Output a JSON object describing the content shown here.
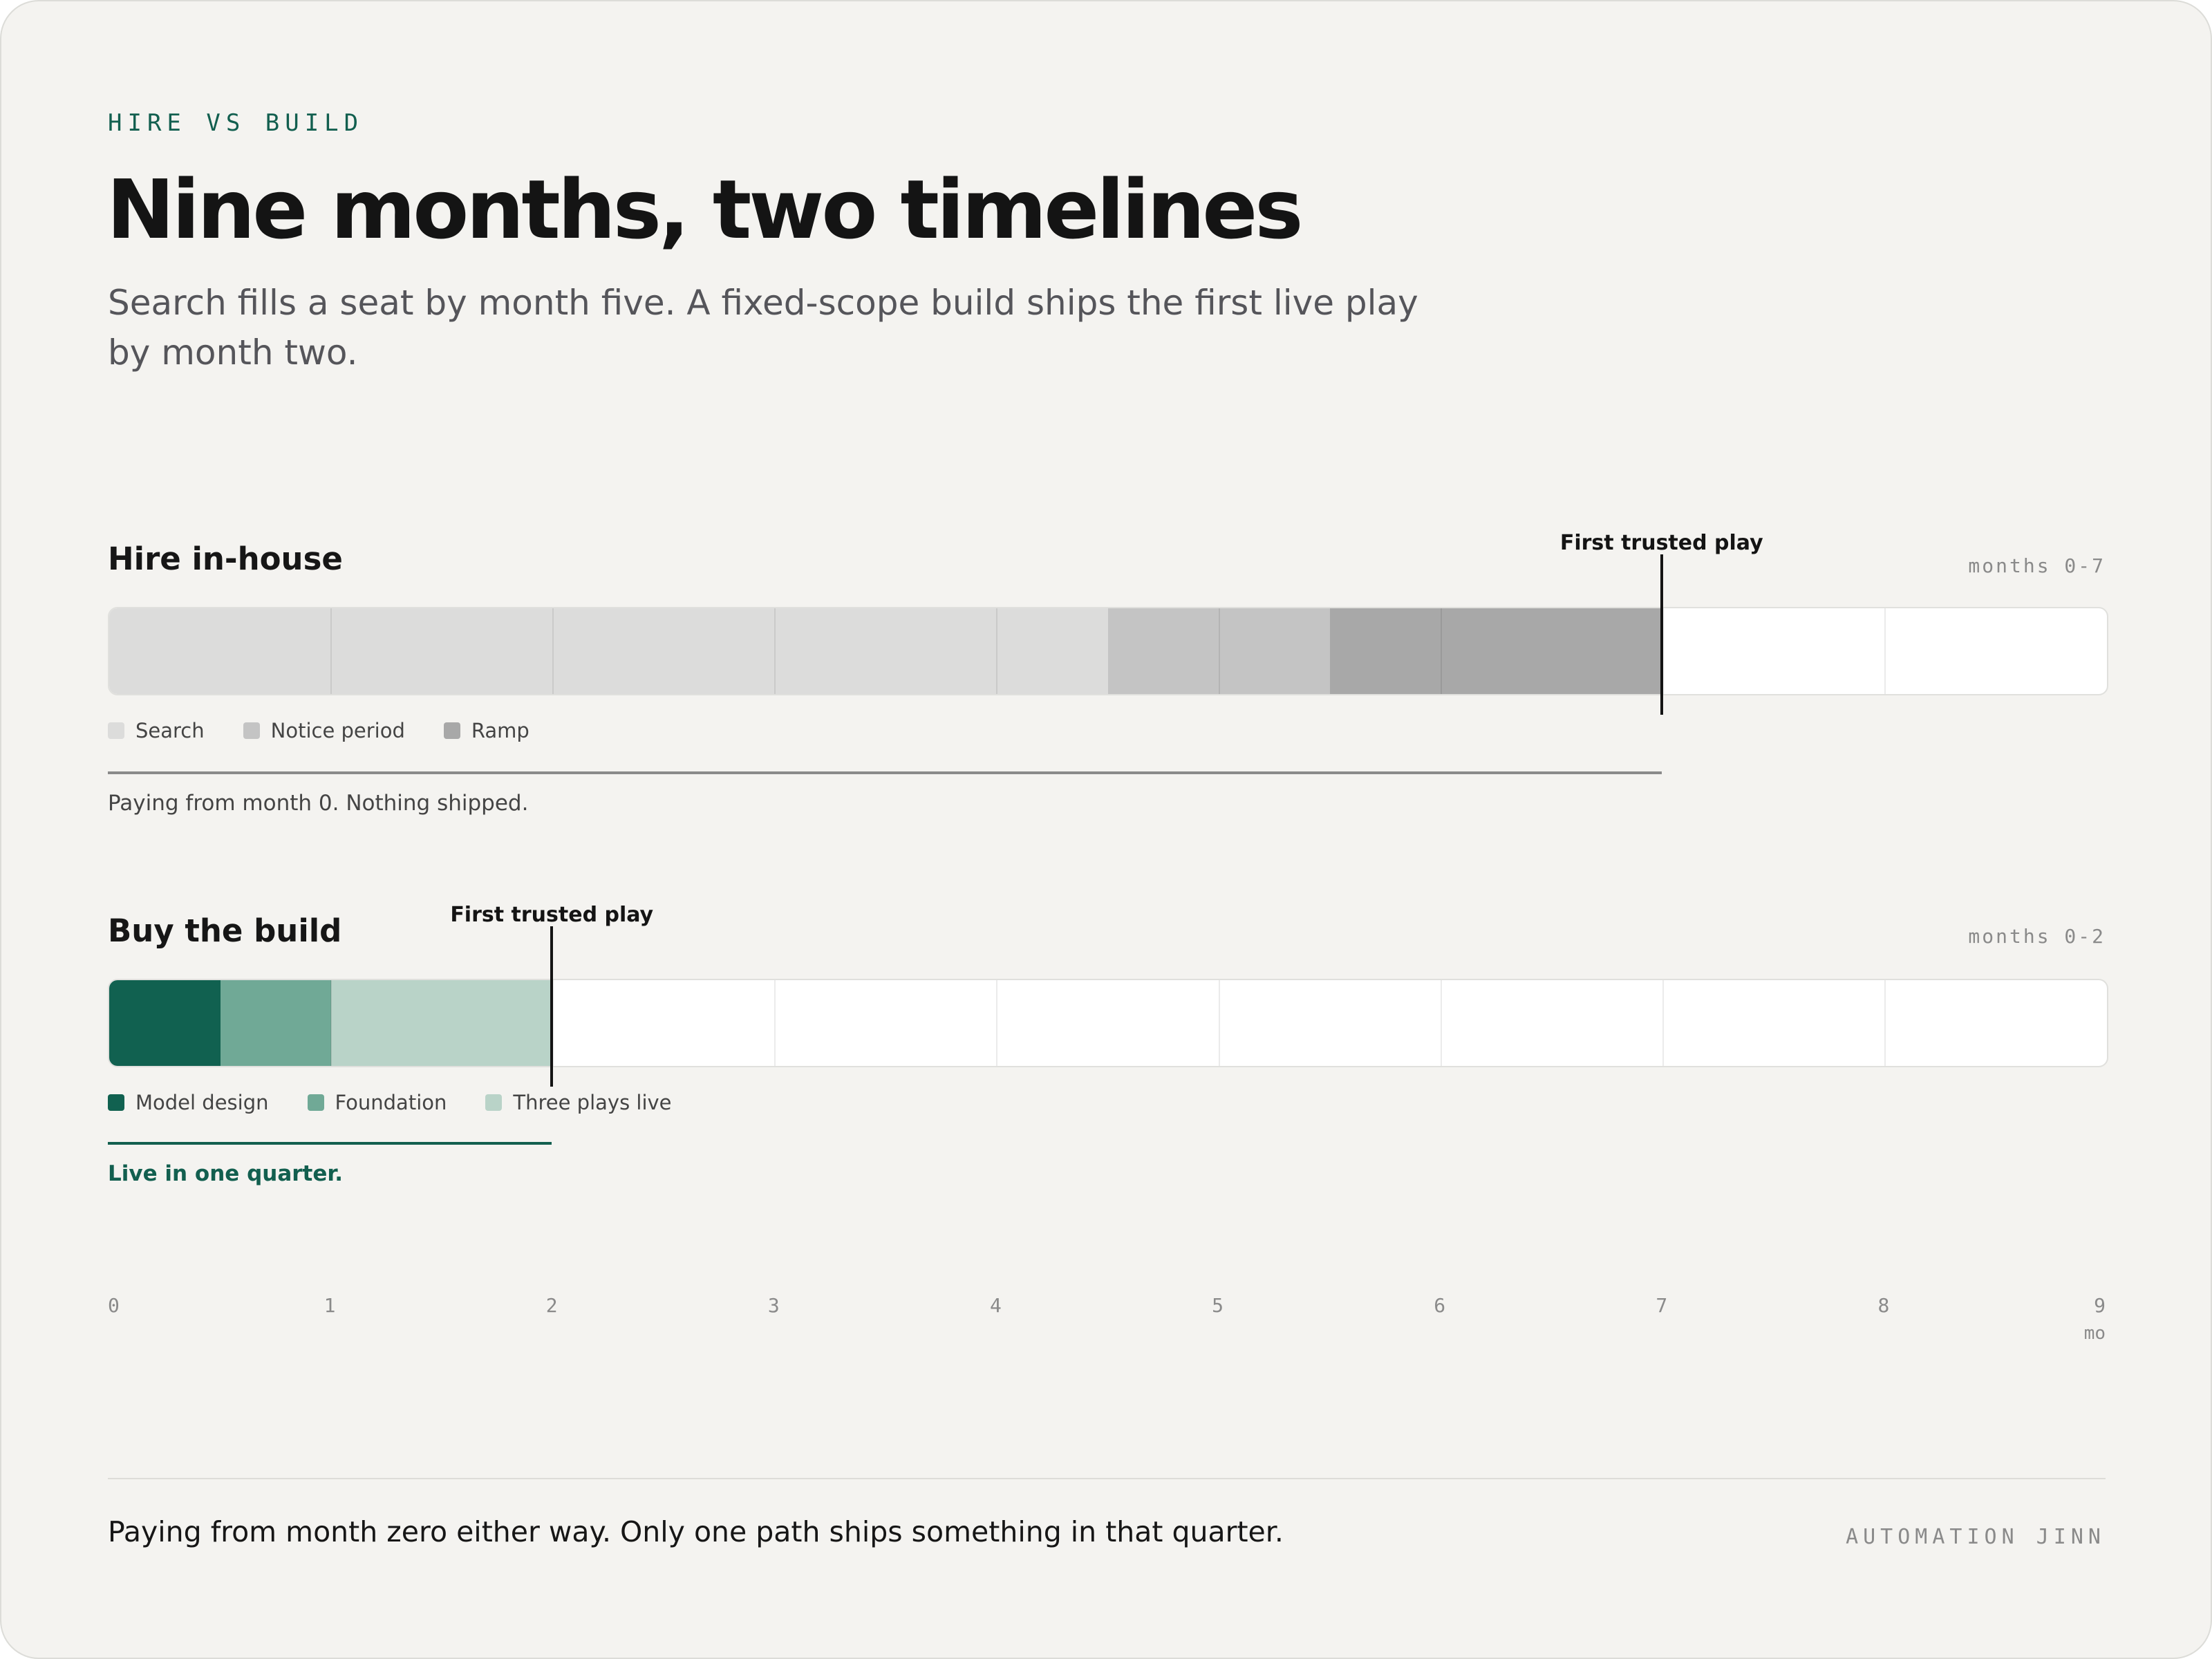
{
  "eyebrow": "HIRE VS BUILD",
  "title": "Nine months, two timelines",
  "subtitle": "Search fills a seat by month five. A fixed-scope build ships the first live play by month two.",
  "chart_data": {
    "type": "timeline",
    "x_min": 0,
    "x_max": 9,
    "ticks": [
      "0",
      "1",
      "2",
      "3",
      "4",
      "5",
      "6",
      "7",
      "8",
      "9"
    ],
    "axis_unit": "mo",
    "tracks": [
      {
        "title": "Hire in-house",
        "range_label": "months 0-7",
        "marker_label": "First trusted play",
        "marker_month": 7,
        "note": "Paying from month 0. Nothing shipped.",
        "note_color": "#444444",
        "rule_color": "#8a8a8a",
        "rule_end_month": 7,
        "phases": [
          {
            "name": "Search",
            "start": 0,
            "end": 4.5,
            "color": "#dcdcdb"
          },
          {
            "name": "Notice period",
            "start": 4.5,
            "end": 5.5,
            "color": "#c4c4c4"
          },
          {
            "name": "Ramp",
            "start": 5.5,
            "end": 7,
            "color": "#a8a8a8"
          }
        ]
      },
      {
        "title": "Buy the build",
        "range_label": "months 0-2",
        "marker_label": "First trusted play",
        "marker_month": 2,
        "note": "Live in one quarter.",
        "note_color": "#125f4f",
        "rule_color": "#125f4f",
        "rule_end_month": 2,
        "phases": [
          {
            "name": "Model design",
            "start": 0,
            "end": 0.5,
            "color": "#116150"
          },
          {
            "name": "Foundation",
            "start": 0.5,
            "end": 1,
            "color": "#70a996"
          },
          {
            "name": "Three plays live",
            "start": 1,
            "end": 2,
            "color": "#b9d3c8"
          }
        ]
      }
    ]
  },
  "footer": {
    "text": "Paying from month zero either way. Only one path ships something in that quarter.",
    "brand": "AUTOMATION JINN"
  }
}
